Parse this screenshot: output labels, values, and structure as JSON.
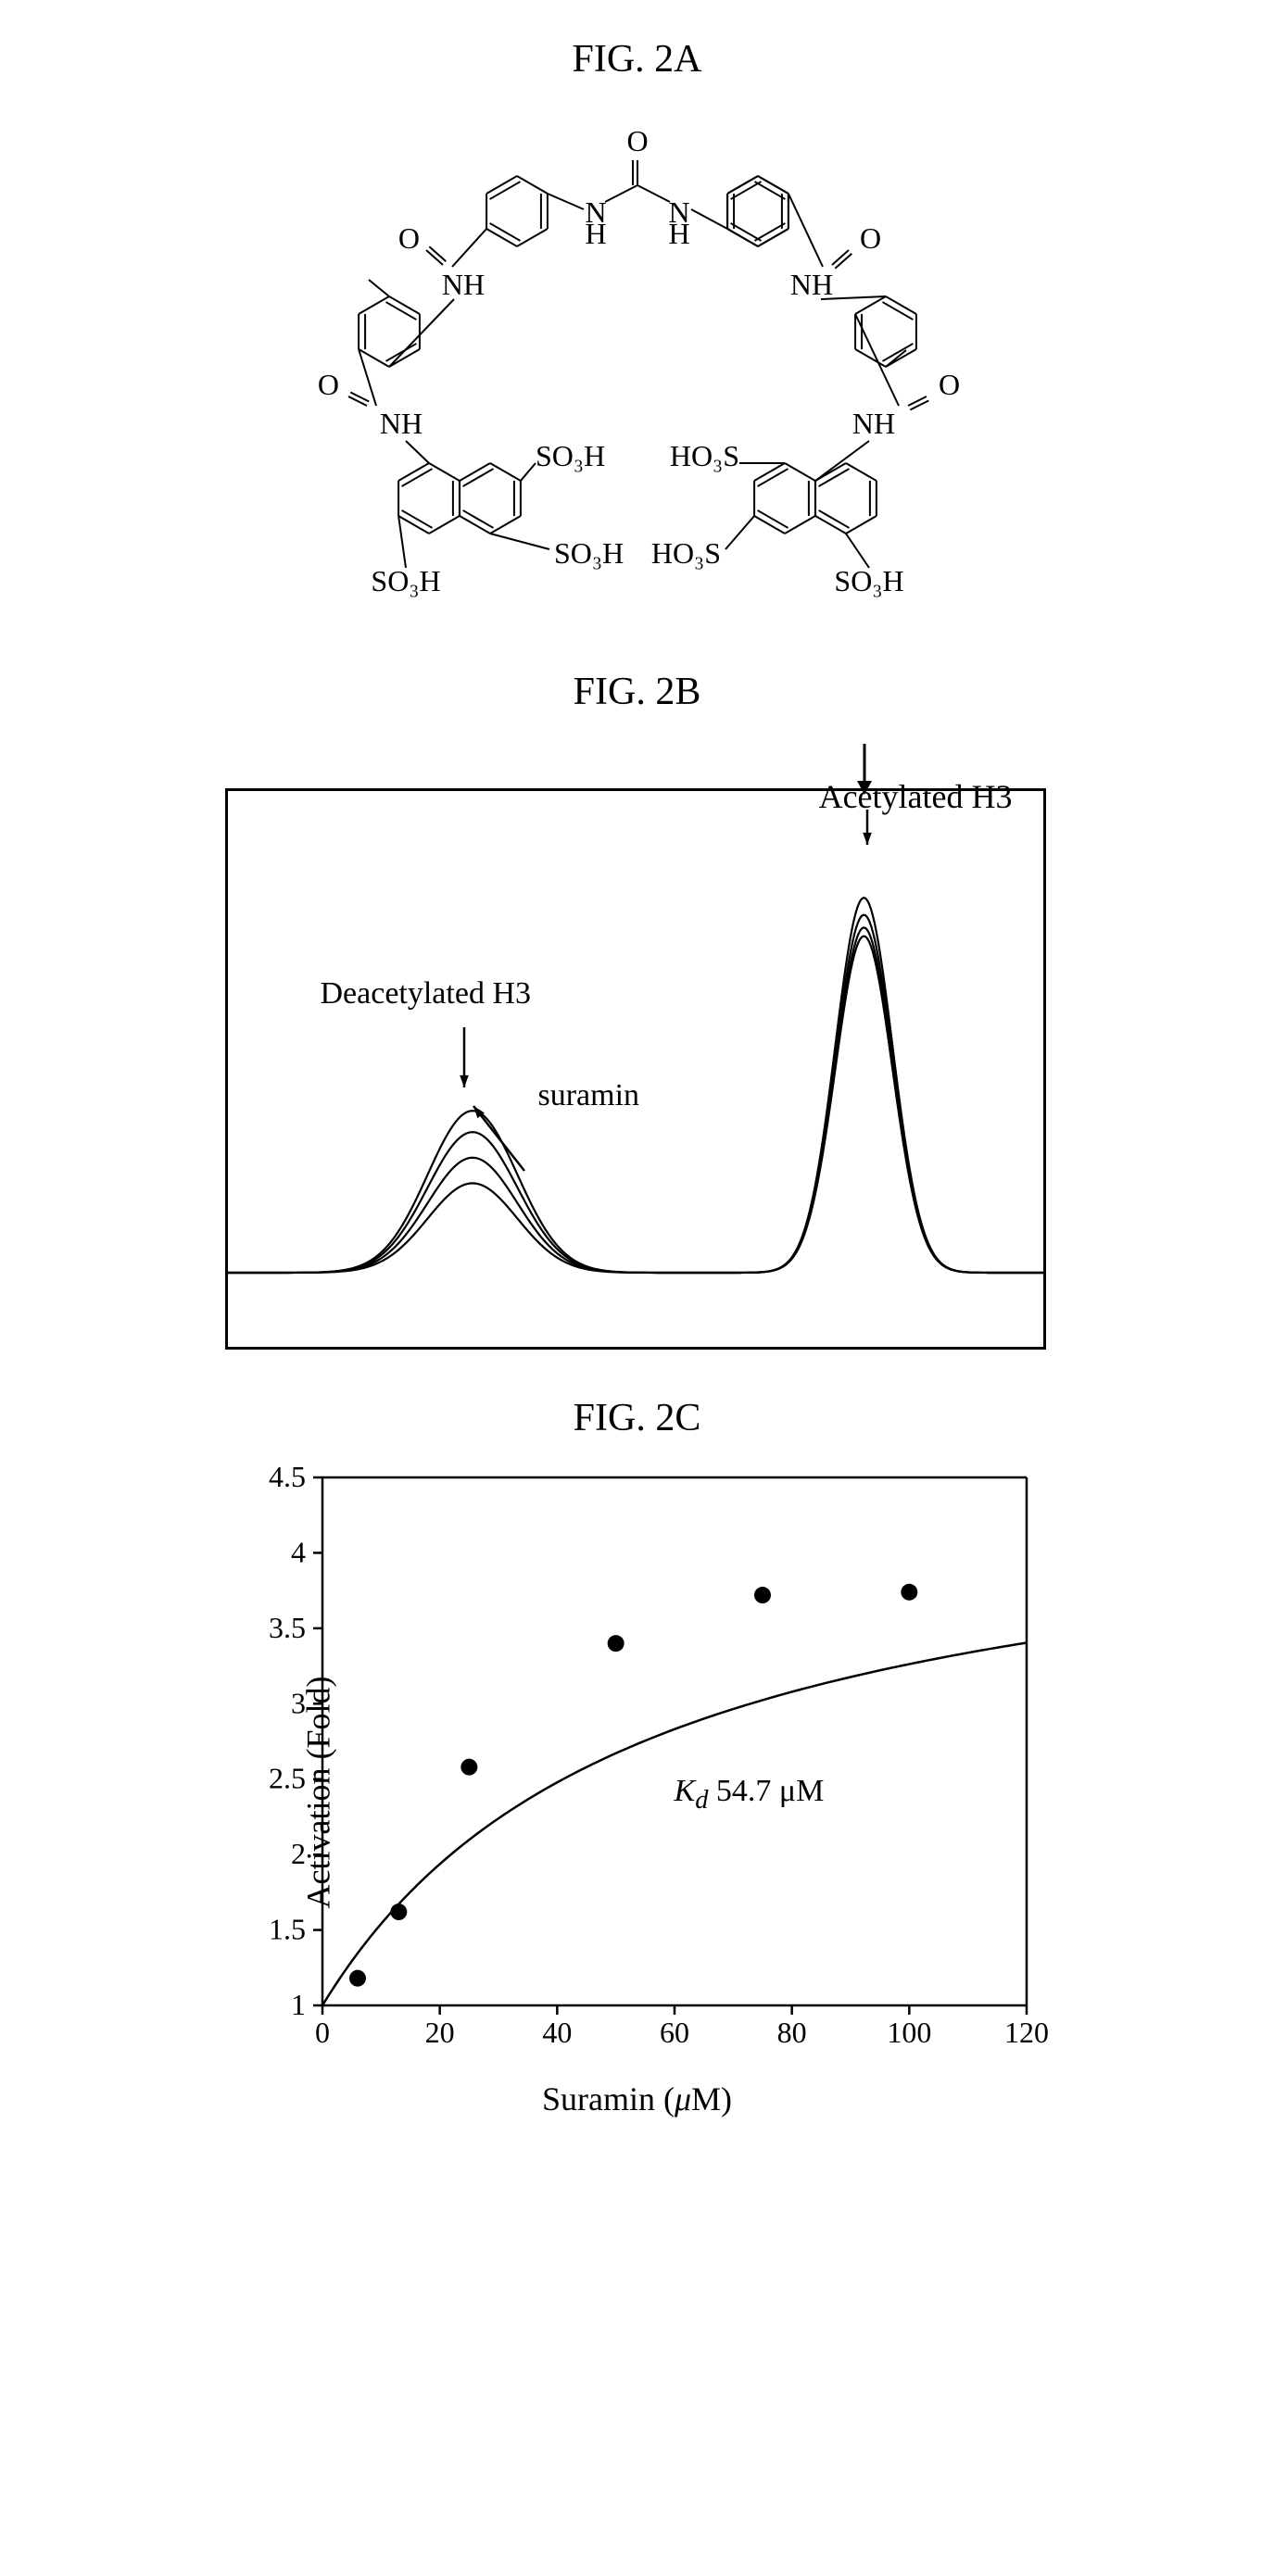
{
  "fig2a": {
    "title": "FIG. 2A",
    "structure": {
      "type": "chemical-structure",
      "name": "suramin",
      "labels": [
        "O",
        "O",
        "O",
        "NH",
        "NH",
        "NH",
        "NH",
        "NH",
        "NH",
        "SO₃H",
        "SO₃H",
        "SO₃H",
        "HO₃S",
        "HO₃S",
        "SO₃H"
      ],
      "line_color": "#000000",
      "line_width": 2,
      "text_fontsize": 32
    }
  },
  "fig2b": {
    "title": "FIG. 2B",
    "type": "hplc-chromatogram",
    "border_color": "#000000",
    "border_width": 3,
    "line_color": "#000000",
    "line_width": 2.2,
    "annotations": {
      "acetylated": {
        "text": "Acetylated H3",
        "arrow": true
      },
      "deacetylated": {
        "text": "Deacetylated H3",
        "arrow": true
      },
      "suramin": {
        "text": "suramin",
        "arrow": true
      }
    },
    "traces": [
      {
        "peak1_x": 0.3,
        "peak1_h": 0.21,
        "peak2_x": 0.78,
        "peak2_h": 0.88
      },
      {
        "peak1_x": 0.3,
        "peak1_h": 0.27,
        "peak2_x": 0.78,
        "peak2_h": 0.84
      },
      {
        "peak1_x": 0.3,
        "peak1_h": 0.33,
        "peak2_x": 0.78,
        "peak2_h": 0.81
      },
      {
        "peak1_x": 0.3,
        "peak1_h": 0.38,
        "peak2_x": 0.78,
        "peak2_h": 0.79
      }
    ]
  },
  "fig2c": {
    "title": "FIG. 2C",
    "type": "scatter",
    "xlabel": "Suramin (μM)",
    "ylabel": "Activation (Fold)",
    "xlim": [
      0,
      120
    ],
    "ylim": [
      1,
      4.5
    ],
    "xtick_step": 20,
    "ytick_step": 0.5,
    "points": [
      {
        "x": 6,
        "y": 1.18
      },
      {
        "x": 13,
        "y": 1.62
      },
      {
        "x": 25,
        "y": 2.58
      },
      {
        "x": 50,
        "y": 3.4
      },
      {
        "x": 75,
        "y": 3.72
      },
      {
        "x": 100,
        "y": 3.74
      }
    ],
    "curve": {
      "kd": 54.7,
      "ymax": 4.5,
      "y0": 1.0
    },
    "kd_text": "Kd 54.7 μM",
    "marker_color": "#000000",
    "marker_radius": 9,
    "line_color": "#000000",
    "line_width": 2.5,
    "axis_color": "#000000",
    "axis_width": 2.5,
    "tick_length": 10,
    "label_fontsize": 36,
    "tick_fontsize": 32,
    "background_color": "#ffffff"
  }
}
